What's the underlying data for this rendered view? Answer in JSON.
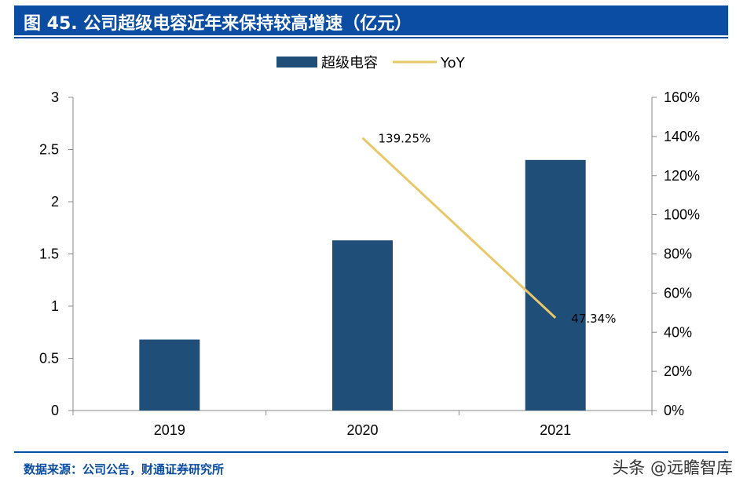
{
  "header": {
    "title": "图 45. 公司超级电容近年来保持较高增速（亿元）"
  },
  "footer": {
    "source": "数据来源：公司公告，财通证券研究所",
    "watermark": "头条 @远瞻智库"
  },
  "colors": {
    "title_bg": "#0b4da2",
    "bar": "#1f4e79",
    "line": "#e8c86a",
    "rule": "#0b4da2"
  },
  "chart_data": {
    "type": "bar",
    "title": "",
    "categories": [
      "2019",
      "2020",
      "2021"
    ],
    "series": [
      {
        "name": "超级电容",
        "type": "bar",
        "axis": "left",
        "values": [
          0.68,
          1.63,
          2.4
        ]
      },
      {
        "name": "YoY",
        "type": "line",
        "axis": "right",
        "values": [
          null,
          139.25,
          47.34
        ],
        "labels": [
          "",
          "139.25%",
          "47.34%"
        ]
      }
    ],
    "ylim_left": [
      0,
      3
    ],
    "yticks_left": [
      "0",
      "0.5",
      "1",
      "1.5",
      "2",
      "2.5",
      "3"
    ],
    "ytick_values_left": [
      0,
      0.5,
      1,
      1.5,
      2,
      2.5,
      3
    ],
    "ylim_right": [
      0,
      160
    ],
    "yticks_right": [
      "0%",
      "20%",
      "40%",
      "60%",
      "80%",
      "100%",
      "120%",
      "140%",
      "160%"
    ],
    "ytick_values_right": [
      0,
      20,
      40,
      60,
      80,
      100,
      120,
      140,
      160
    ],
    "legend": [
      "超级电容",
      "YoY"
    ],
    "legend_position": "top-center",
    "grid": false
  }
}
